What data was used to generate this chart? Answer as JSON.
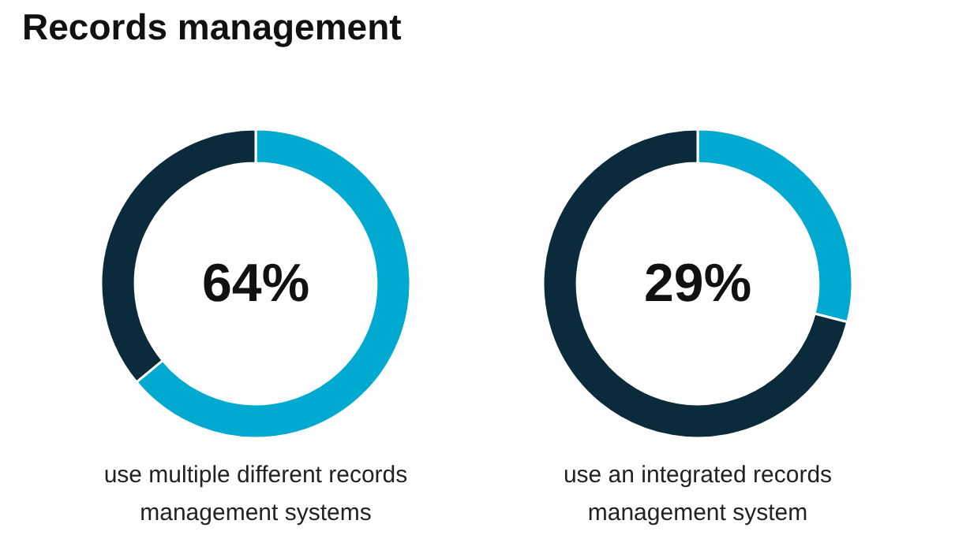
{
  "chart_data": [
    {
      "type": "donut",
      "title": "Records management",
      "categories": [
        null,
        null
      ],
      "values": [
        64,
        36
      ],
      "colors": [
        "#00a9d0",
        "#0b2a3c"
      ],
      "annotations": [
        "64%",
        "use multiple different records management systems"
      ]
    },
    {
      "type": "donut",
      "categories": [
        null,
        null
      ],
      "values": [
        29,
        71
      ],
      "colors": [
        "#00a9d0",
        "#0b2a3c"
      ],
      "annotations": [
        "29%",
        "use an integrated records management system"
      ]
    }
  ]
}
